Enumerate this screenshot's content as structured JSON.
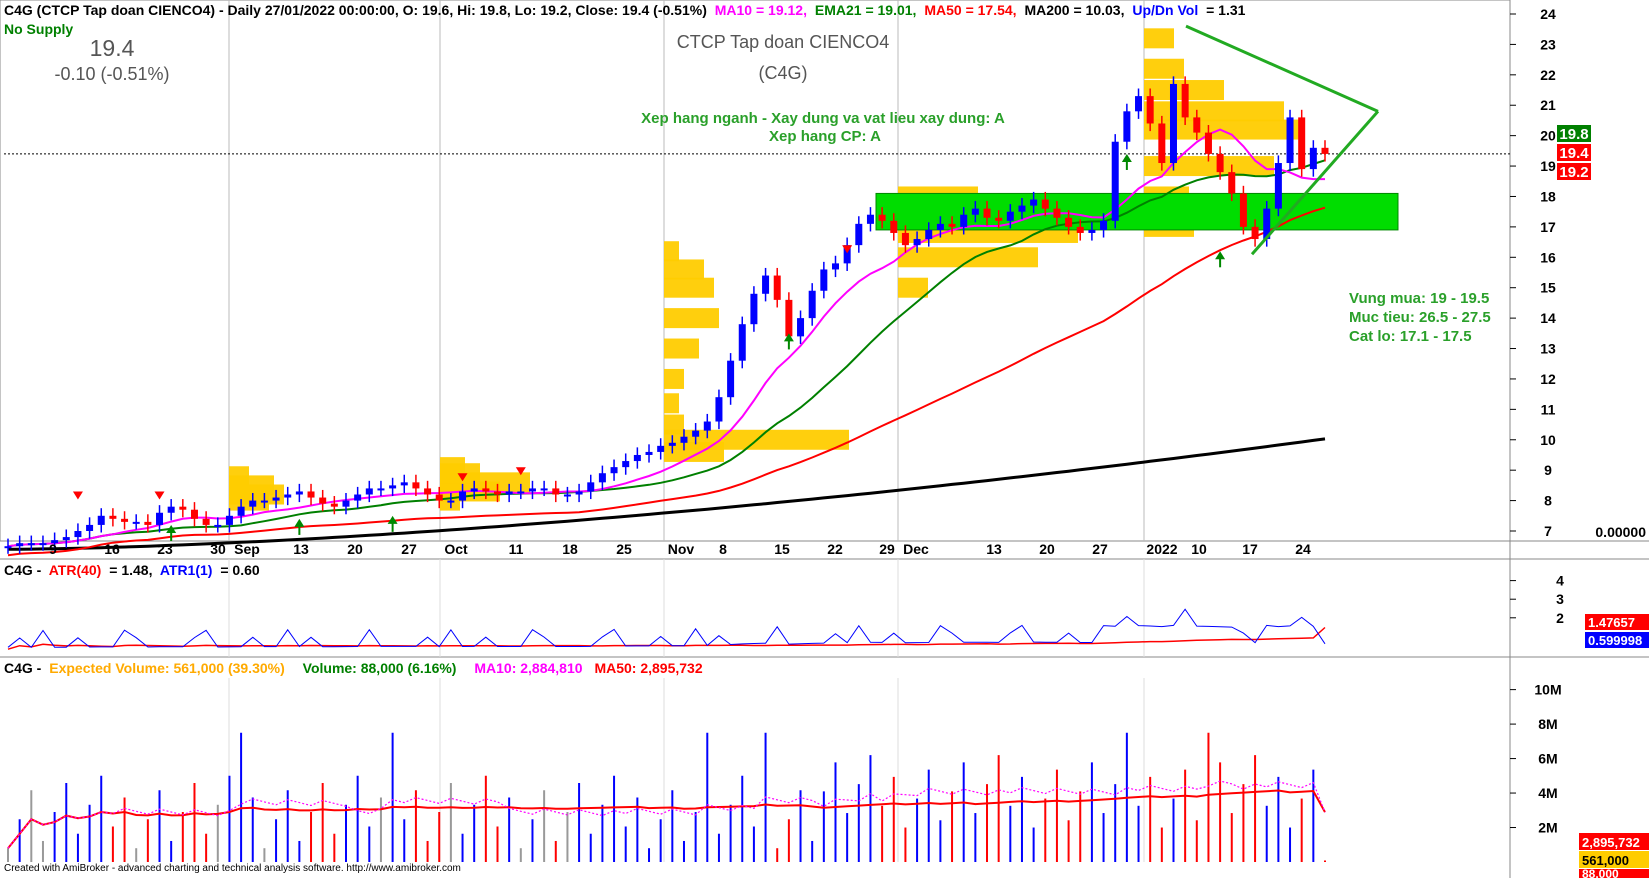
{
  "header": {
    "symbol_line": "C4G (CTCP Tap doan CIENCO4) - Daily 27/01/2022 00:00:00, O: 19.6, Hi: 19.8, Lo: 19.2, Close: 19.4 (-0.51%)",
    "ma10": "MA10 = 19.12,",
    "ema21": "EMA21 = 19.01,",
    "ma50": "MA50 = 17.54,",
    "ma200": "MA200 = 10.03,",
    "updn": "Up/Dn Vol",
    "updn_val": "= 1.31",
    "no_supply": "No Supply",
    "price_big": "19.4",
    "change": "-0.10 (-0.51%)",
    "company": "CTCP Tap doan CIENCO4",
    "ticker": "(C4G)",
    "rank_industry": "Xep hang nganh - Xay dung va vat lieu xay dung: A",
    "rank_stock": "Xep hang CP: A",
    "plan_buy": "Vung mua: 19 - 19.5",
    "plan_target": "Muc tieu: 26.5 - 27.5",
    "plan_stop": "Cat lo: 17.1 - 17.5"
  },
  "right_badges": {
    "hi": "19.8",
    "close": "19.4",
    "lo": "19.2",
    "zero": "0.00000"
  },
  "xaxis_labels": [
    "9",
    "16",
    "23",
    "30",
    "Sep",
    "13",
    "20",
    "27",
    "Oct",
    "11",
    "18",
    "25",
    "Nov",
    "8",
    "15",
    "22",
    "29",
    "Dec",
    "13",
    "20",
    "27",
    "2022",
    "10",
    "17",
    "24"
  ],
  "atr_panel": {
    "label_prefix": "C4G -",
    "atr40": "ATR(40)",
    "atr40_val": "= 1.48,",
    "atr1": "ATR1(1)",
    "atr1_val": "= 0.60",
    "badge_atr40": "1.47657",
    "badge_atr1": "0.599998",
    "ticks": [
      "4",
      "3",
      "2"
    ]
  },
  "volume_panel": {
    "label_prefix": "C4G -",
    "expected": "Expected Volume: 561,000 (39.30%)",
    "volume": "Volume: 88,000 (6.16%)",
    "ma10": "MA10: 2,884,810",
    "ma50": "MA50: 2,895,732",
    "ticks": [
      "10M",
      "8M",
      "6M",
      "4M",
      "2M"
    ],
    "badge_ma50": "2,895,732",
    "badge_expected": "561,000",
    "badge_volume": "88,000"
  },
  "footer": "Created with AmiBroker - advanced charting and technical analysis software. http://www.amibroker.com",
  "colors": {
    "up": "#0000ff",
    "down": "#ff0000",
    "ma10": "#ff00ff",
    "ema21": "#008000",
    "ma50": "#ff0000",
    "ma200": "#000000",
    "volume_profile": "#ffcc00",
    "box": "#00dd00",
    "triangle": "#22aa22"
  },
  "chart_data": {
    "type": "candlestick",
    "title": "C4G (CTCP Tap doan CIENCO4) - Daily",
    "ylim": [
      6,
      24.5
    ],
    "yticks": [
      7,
      8,
      9,
      10,
      11,
      12,
      13,
      14,
      15,
      16,
      17,
      18,
      19,
      20,
      21,
      22,
      23,
      24
    ],
    "last": {
      "open": 19.6,
      "high": 19.8,
      "low": 19.2,
      "close": 19.4
    },
    "moving_averages": {
      "ma10": 19.12,
      "ema21": 19.01,
      "ma50": 17.54,
      "ma200": 10.03
    },
    "closes": [
      6.5,
      6.6,
      6.6,
      6.6,
      6.7,
      6.8,
      7.0,
      7.2,
      7.5,
      7.4,
      7.3,
      7.3,
      7.2,
      7.6,
      7.8,
      7.7,
      7.4,
      7.2,
      7.2,
      7.5,
      7.8,
      8.0,
      8.0,
      8.1,
      8.2,
      8.3,
      8.1,
      7.9,
      7.8,
      8.0,
      8.2,
      8.4,
      8.4,
      8.5,
      8.6,
      8.4,
      8.2,
      8.0,
      8.0,
      8.3,
      8.4,
      8.3,
      8.2,
      8.3,
      8.3,
      8.4,
      8.4,
      8.2,
      8.2,
      8.3,
      8.6,
      8.9,
      9.1,
      9.3,
      9.5,
      9.6,
      9.8,
      9.9,
      10.1,
      10.3,
      10.6,
      11.4,
      12.6,
      13.8,
      14.8,
      15.4,
      14.6,
      13.4,
      14.0,
      14.9,
      15.6,
      15.8,
      16.4,
      17.1,
      17.4,
      17.2,
      16.8,
      16.4,
      16.6,
      16.9,
      17.1,
      17.0,
      17.4,
      17.6,
      17.3,
      17.2,
      17.5,
      17.7,
      17.9,
      17.6,
      17.3,
      17.0,
      16.8,
      16.9,
      17.2,
      19.8,
      20.8,
      21.3,
      20.4,
      19.1,
      21.7,
      20.6,
      20.1,
      19.4,
      18.8,
      18.1,
      17.0,
      16.6,
      17.6,
      19.1,
      20.6,
      18.9,
      19.6,
      19.4
    ],
    "ma200_endpoints": {
      "start": 6.4,
      "end": 10.03
    },
    "annotations": {
      "box_range": [
        16.9,
        18.1
      ],
      "triangle": {
        "top": 23.6,
        "apex": 20.8,
        "bottom": 16.1
      }
    },
    "atr": {
      "atr40": 1.48,
      "atr1": 0.6,
      "ylim": [
        0,
        5
      ]
    },
    "volume": {
      "last": 88000,
      "expected": 561000,
      "ma10": 2884810,
      "ma50": 2895732,
      "ylim": [
        0,
        10500000
      ]
    }
  }
}
